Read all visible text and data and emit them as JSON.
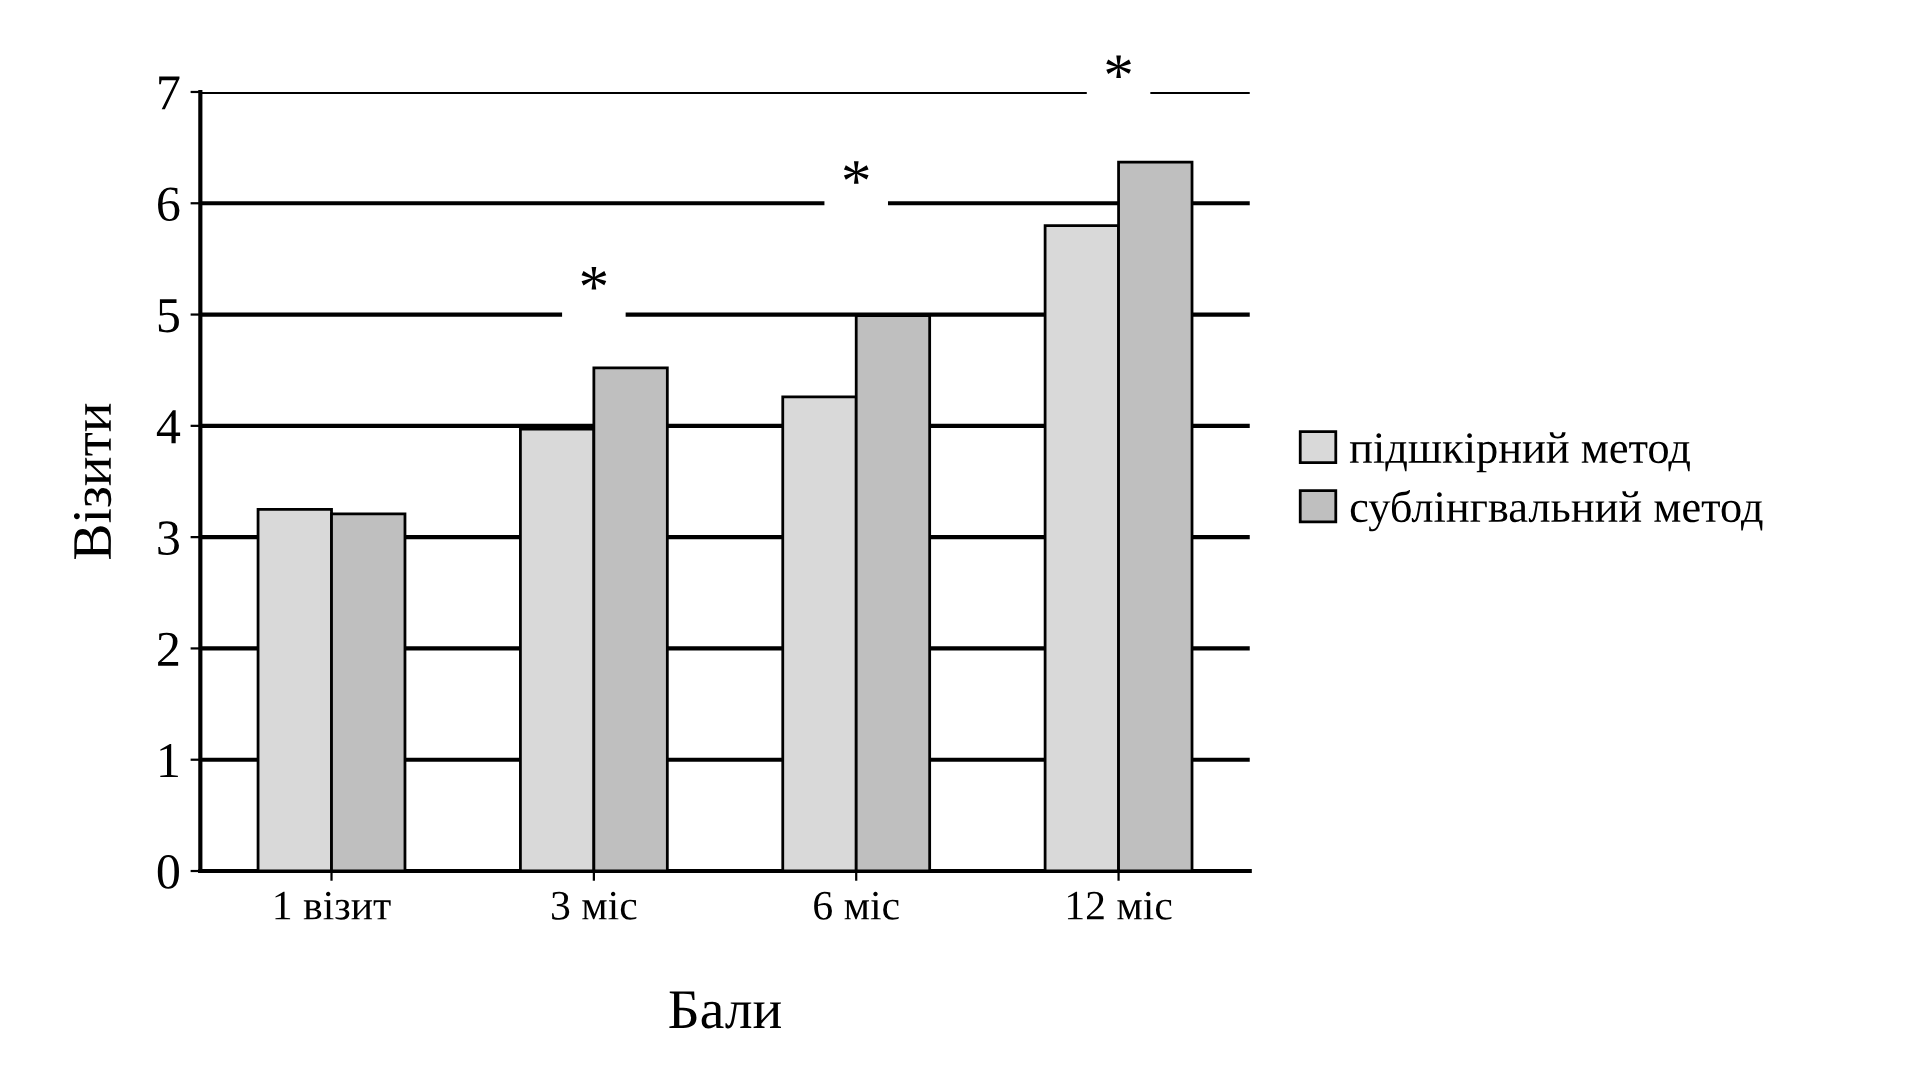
{
  "chart_data": {
    "type": "bar",
    "xlabel": "Бали",
    "ylabel": "Візити",
    "categories": [
      "1 візит",
      "3 міс",
      "6 міс",
      "12 міс"
    ],
    "series": [
      {
        "name": "підшкірний метод",
        "color": "#d9d9d9",
        "values": [
          3.25,
          3.97,
          4.26,
          5.8
        ]
      },
      {
        "name": "сублінгвальний метод",
        "color": "#bfbfbf",
        "values": [
          3.21,
          4.52,
          4.99,
          6.37
        ]
      }
    ],
    "ylim": [
      0,
      7
    ],
    "yticks": [
      0,
      1,
      2,
      3,
      4,
      5,
      6,
      7
    ],
    "grid": "y",
    "legend": "right",
    "annotations": [
      "*",
      "*",
      "*"
    ]
  }
}
